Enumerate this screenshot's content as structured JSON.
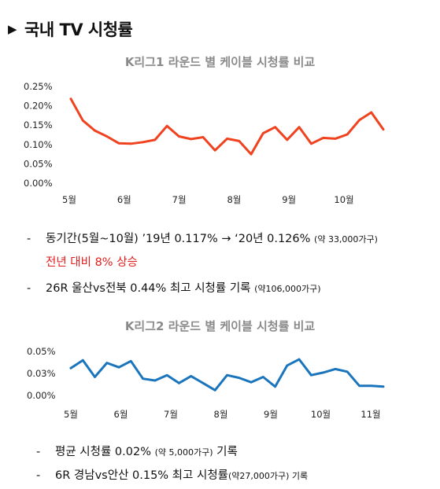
{
  "header": {
    "title": "국내 TV 시청률"
  },
  "colors": {
    "kleague1": "#f0421e",
    "kleague2": "#1b75bc"
  },
  "charts": [
    {
      "bullets": [
        {
          "main": "동기간(5월~10월) ’19년 0.117% → ‘20년 0.126% ",
          "small": "(약 33,000가구)"
        },
        {
          "main": "전년 대비 8% 상승",
          "small": ""
        },
        {
          "main": "26R 울산vs전북 0.44% 최고 시청률 기록 ",
          "small": "(약106,000가구)"
        }
      ]
    },
    {
      "bullets": [
        {
          "main": "평균 시청률 0.02% ",
          "small": "(약 5,000가구)",
          "tail": " 기록"
        },
        {
          "main": "6R 경남vs안산 0.15% 최고 시청률",
          "small": "(약27,000가구) 기록",
          "tail": ""
        }
      ]
    }
  ],
  "chart_data": [
    {
      "type": "line",
      "title": "K리그1 라운드 별 케이블 시청률 비교",
      "ylim": [
        0,
        0.25
      ],
      "ytick_labels": [
        "0.25%",
        "0.20%",
        "0.15%",
        "0.10%",
        "0.05%",
        "0.00%"
      ],
      "ytick_values": [
        0.25,
        0.2,
        0.15,
        0.1,
        0.05,
        0.0
      ],
      "xtick_labels": [
        "5월",
        "6월",
        "7월",
        "8월",
        "9월",
        "10월"
      ],
      "grid": false,
      "series": [
        {
          "values": [
            0.218,
            0.162,
            0.136,
            0.121,
            0.103,
            0.102,
            0.106,
            0.112,
            0.148,
            0.121,
            0.114,
            0.119,
            0.085,
            0.115,
            0.109,
            0.075,
            0.129,
            0.145,
            0.112,
            0.145,
            0.102,
            0.117,
            0.115,
            0.126,
            0.163,
            0.183,
            0.139
          ]
        }
      ]
    },
    {
      "type": "line",
      "title": "K리그2 라운드 별 케이블 시청률 비교",
      "ylim": [
        0,
        0.05
      ],
      "ytick_labels": [
        "0.05%",
        "0.03%",
        "0.00%"
      ],
      "ytick_values": [
        0.05,
        0.025,
        0.0
      ],
      "xtick_labels": [
        "5월",
        "6월",
        "7월",
        "8월",
        "9월",
        "10월",
        "11월"
      ],
      "grid": false,
      "series": [
        {
          "values": [
            0.031,
            0.04,
            0.021,
            0.037,
            0.032,
            0.039,
            0.019,
            0.017,
            0.023,
            0.014,
            0.022,
            0.014,
            0.006,
            0.023,
            0.02,
            0.015,
            0.021,
            0.01,
            0.034,
            0.041,
            0.023,
            0.026,
            0.03,
            0.027,
            0.011,
            0.011,
            0.01
          ]
        }
      ]
    }
  ]
}
